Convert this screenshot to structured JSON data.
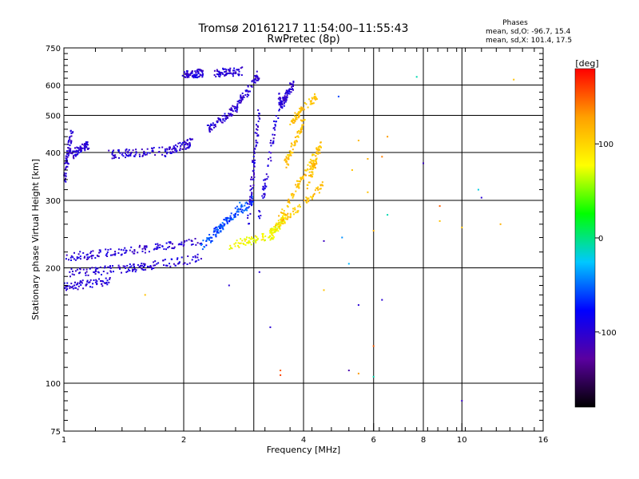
{
  "chart_data": {
    "type": "scatter",
    "title": "Tromsø 20161217 11:54:00–11:55:43",
    "subtitle": "RwPretec (8p)",
    "xlabel": "Frequency [MHz]",
    "ylabel": "Stationary phase Virtual Height [km]",
    "xscale": "log",
    "yscale": "log",
    "xlim": [
      1,
      16
    ],
    "ylim": [
      75,
      750
    ],
    "x_ticks": [
      1,
      2,
      4,
      6,
      8,
      10,
      16
    ],
    "x_tick_labels": [
      "1",
      "2",
      "4",
      "6",
      "8",
      "10",
      "16"
    ],
    "x_grid": [
      1,
      2,
      3,
      4,
      6,
      8,
      10,
      16
    ],
    "y_ticks": [
      75,
      100,
      200,
      300,
      400,
      500,
      600,
      750
    ],
    "y_tick_labels": [
      "75",
      "100",
      "200",
      "300",
      "400",
      "500",
      "600",
      "750"
    ],
    "grid": true,
    "stats": {
      "heading": "Phases",
      "line_o": "mean, sd,O: -96.7, 15.4",
      "line_x": "mean, sd,X: 101.4, 17.5"
    },
    "colorbar": {
      "label": "[deg]",
      "range": [
        -180,
        180
      ],
      "tick_values": [
        100,
        0,
        -100
      ],
      "tick_labels": [
        "100",
        "0",
        "-100"
      ],
      "colors": [
        "#000000",
        "#5a00a0",
        "#0000ff",
        "#00c8ff",
        "#00ff00",
        "#ffff00",
        "#ffa000",
        "#ff0000"
      ]
    },
    "series": [
      {
        "mode": "O",
        "phase": -100,
        "segments": [
          {
            "f": [
              1.0,
              1.5
            ],
            "h": [
              213,
              222
            ]
          },
          {
            "f": [
              1.5,
              2.2
            ],
            "h": [
              222,
              235
            ]
          },
          {
            "f": [
              1.0,
              1.5
            ],
            "h": [
              193,
              200
            ]
          },
          {
            "f": [
              1.5,
              2.2
            ],
            "h": [
              200,
              212
            ]
          },
          {
            "f": [
              1.0,
              1.3
            ],
            "h": [
              178,
              185
            ]
          },
          {
            "f": [
              1.0,
              1.05
            ],
            "h": [
              340,
              460
            ]
          },
          {
            "f": [
              1.05,
              1.15
            ],
            "h": [
              395,
              420
            ]
          },
          {
            "f": [
              1.3,
              1.8
            ],
            "h": [
              395,
              405
            ]
          },
          {
            "f": [
              1.8,
              2.1
            ],
            "h": [
              400,
              425
            ]
          },
          {
            "f": [
              2.0,
              2.25
            ],
            "h": [
              640,
              645
            ]
          },
          {
            "f": [
              2.4,
              2.8
            ],
            "h": [
              645,
              652
            ]
          },
          {
            "f": [
              2.3,
              2.7
            ],
            "h": [
              460,
              520
            ]
          },
          {
            "f": [
              2.7,
              3.1
            ],
            "h": [
              520,
              640
            ]
          },
          {
            "f": [
              2.9,
              3.1
            ],
            "h": [
              260,
              520
            ]
          },
          {
            "f": [
              3.1,
              3.5
            ],
            "h": [
              270,
              570
            ]
          },
          {
            "f": [
              3.5,
              3.75
            ],
            "h": [
              530,
              600
            ]
          }
        ]
      },
      {
        "mode": "O-transition",
        "phase": -60,
        "segments": [
          {
            "f": [
              2.2,
              2.8
            ],
            "h": [
              225,
              290
            ]
          },
          {
            "f": [
              2.4,
              3.0
            ],
            "h": [
              250,
              300
            ]
          }
        ]
      },
      {
        "mode": "X-low",
        "phase": 80,
        "segments": [
          {
            "f": [
              2.6,
              3.4
            ],
            "h": [
              228,
              245
            ]
          },
          {
            "f": [
              3.3,
              3.6
            ],
            "h": [
              245,
              270
            ]
          }
        ]
      },
      {
        "mode": "X",
        "phase": 110,
        "segments": [
          {
            "f": [
              3.5,
              4.3
            ],
            "h": [
              270,
              400
            ]
          },
          {
            "f": [
              3.6,
              4.0
            ],
            "h": [
              370,
              480
            ]
          },
          {
            "f": [
              3.7,
              4.3
            ],
            "h": [
              480,
              560
            ]
          },
          {
            "f": [
              3.4,
              4.5
            ],
            "h": [
              255,
              330
            ]
          },
          {
            "f": [
              4.1,
              4.4
            ],
            "h": [
              330,
              420
            ]
          }
        ]
      },
      {
        "mode": "sporadic",
        "points": [
          {
            "f": 5.3,
            "h": 360,
            "phase": 110
          },
          {
            "f": 5.8,
            "h": 385,
            "phase": 120
          },
          {
            "f": 6.5,
            "h": 440,
            "phase": 130
          },
          {
            "f": 6.3,
            "h": 390,
            "phase": 140
          },
          {
            "f": 5.8,
            "h": 315,
            "phase": 110
          },
          {
            "f": 5.5,
            "h": 430,
            "phase": 115
          },
          {
            "f": 6.0,
            "h": 250,
            "phase": 120
          },
          {
            "f": 6.5,
            "h": 275,
            "phase": -10
          },
          {
            "f": 5.2,
            "h": 205,
            "phase": -30
          },
          {
            "f": 4.5,
            "h": 175,
            "phase": 110
          },
          {
            "f": 5.5,
            "h": 160,
            "phase": -100
          },
          {
            "f": 6.3,
            "h": 165,
            "phase": -100
          },
          {
            "f": 6.0,
            "h": 125,
            "phase": 150
          },
          {
            "f": 5.2,
            "h": 108,
            "phase": -120
          },
          {
            "f": 5.5,
            "h": 106,
            "phase": 130
          },
          {
            "f": 6.0,
            "h": 104,
            "phase": -10
          },
          {
            "f": 3.5,
            "h": 105,
            "phase": 160
          },
          {
            "f": 3.5,
            "h": 108,
            "phase": 150
          },
          {
            "f": 3.3,
            "h": 140,
            "phase": -100
          },
          {
            "f": 3.1,
            "h": 195,
            "phase": -100
          },
          {
            "f": 2.6,
            "h": 180,
            "phase": -100
          },
          {
            "f": 1.6,
            "h": 170,
            "phase": 110
          },
          {
            "f": 4.5,
            "h": 235,
            "phase": -110
          },
          {
            "f": 4.9,
            "h": 560,
            "phase": -60
          },
          {
            "f": 7.7,
            "h": 630,
            "phase": -10
          },
          {
            "f": 8.0,
            "h": 375,
            "phase": -110
          },
          {
            "f": 8.8,
            "h": 290,
            "phase": 150
          },
          {
            "f": 8.8,
            "h": 265,
            "phase": 110
          },
          {
            "f": 10.0,
            "h": 255,
            "phase": 110
          },
          {
            "f": 10.0,
            "h": 90,
            "phase": -110
          },
          {
            "f": 11.0,
            "h": 320,
            "phase": -20
          },
          {
            "f": 11.2,
            "h": 305,
            "phase": -100
          },
          {
            "f": 12.5,
            "h": 260,
            "phase": 120
          },
          {
            "f": 13.5,
            "h": 620,
            "phase": 110
          },
          {
            "f": 5.0,
            "h": 240,
            "phase": -40
          }
        ]
      }
    ]
  }
}
